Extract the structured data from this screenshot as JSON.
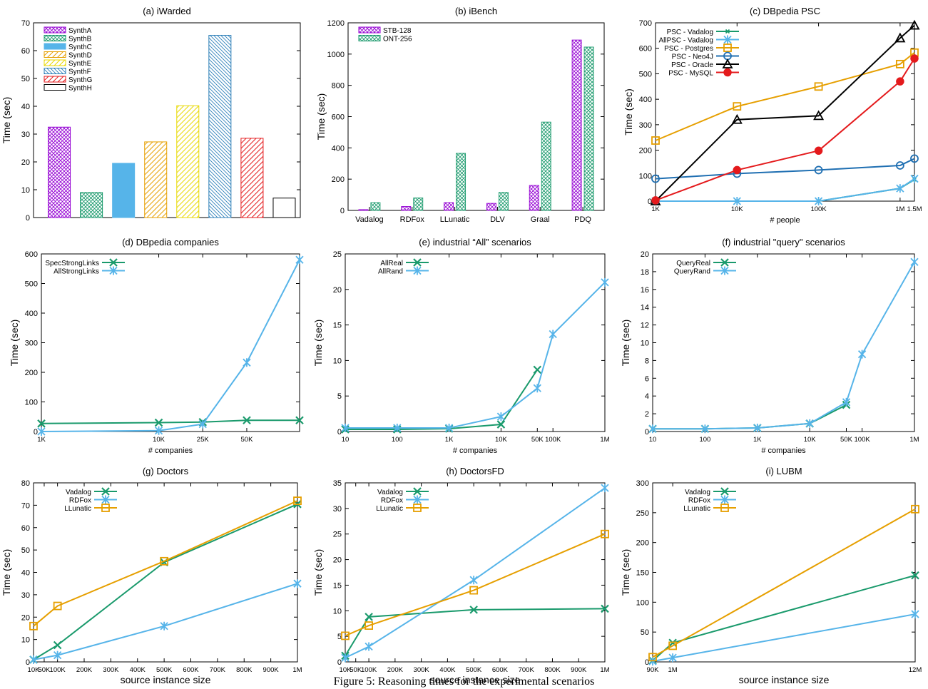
{
  "figure": {
    "caption": "Figure 5: Reasoning times for the experimental scenarios"
  },
  "colors": {
    "green": "#1a9a6c",
    "blue": "#56b4e9",
    "orange": "#e69f00",
    "black": "#000000",
    "red": "#e41a1c",
    "purple": "#9400d3",
    "teal": "#2f8f83",
    "yellow": "#e8d800",
    "synthH": "#000000"
  },
  "chart_data": [
    {
      "id": "a",
      "type": "bar",
      "title": "(a) iWarded",
      "xlabel": "",
      "ylabel": "Time (sec)",
      "ylim": [
        0,
        70
      ],
      "yticks": [
        0,
        10,
        20,
        30,
        40,
        50,
        60,
        70
      ],
      "legend_position": "top-left",
      "series": [
        {
          "name": "SynthA",
          "values": [
            32.5
          ],
          "color": "#9400d3",
          "pattern": "cross"
        },
        {
          "name": "SynthB",
          "values": [
            9
          ],
          "color": "#1a9a6c",
          "pattern": "cross"
        },
        {
          "name": "SynthC",
          "values": [
            19.5
          ],
          "color": "#56b4e9",
          "pattern": "solid"
        },
        {
          "name": "SynthD",
          "values": [
            27.2
          ],
          "color": "#e69f00",
          "pattern": "diag"
        },
        {
          "name": "SynthE",
          "values": [
            40.2
          ],
          "color": "#e8d800",
          "pattern": "diag"
        },
        {
          "name": "SynthF",
          "values": [
            65.5
          ],
          "color": "#2c7fb8",
          "pattern": "anti"
        },
        {
          "name": "SynthG",
          "values": [
            28.5
          ],
          "color": "#e41a1c",
          "pattern": "diag"
        },
        {
          "name": "SynthH",
          "values": [
            7
          ],
          "color": "#000000",
          "pattern": "empty"
        }
      ]
    },
    {
      "id": "b",
      "type": "bar",
      "title": "(b) iBench",
      "xlabel": "",
      "ylabel": "Time (sec)",
      "ylim": [
        0,
        1200
      ],
      "yticks": [
        0,
        200,
        400,
        600,
        800,
        1000,
        1200
      ],
      "legend_position": "top-left",
      "categories": [
        "Vadalog",
        "RDFox",
        "LLunatic",
        "DLV",
        "Graal",
        "PDQ"
      ],
      "series": [
        {
          "name": "STB-128",
          "values": [
            5,
            25,
            50,
            45,
            160,
            1090
          ],
          "color": "#9400d3",
          "pattern": "cross"
        },
        {
          "name": "ONT-256",
          "values": [
            50,
            80,
            365,
            115,
            565,
            1045
          ],
          "color": "#1a9a6c",
          "pattern": "cross"
        }
      ]
    },
    {
      "id": "c",
      "type": "line",
      "title": "(c) DBpedia PSC",
      "xlabel": "# people",
      "ylabel": "Time (sec)",
      "xscale": "log",
      "xlim": [
        1000,
        1500000
      ],
      "xticks": [
        1000,
        10000,
        100000,
        1000000,
        1500000
      ],
      "xticklabels": [
        "1K",
        "10K",
        "100K",
        "1M",
        "1.5M"
      ],
      "ylim": [
        0,
        700
      ],
      "yticks": [
        0,
        100,
        200,
        300,
        400,
        500,
        600,
        700
      ],
      "legend_position": "top-left",
      "x": [
        1000,
        10000,
        100000,
        1000000,
        1500000
      ],
      "series": [
        {
          "name": "PSC - Vadalog",
          "values": [
            0,
            0,
            0,
            50,
            85
          ],
          "color": "#1a9a6c",
          "marker": "small"
        },
        {
          "name": "AllPSC - Vadalog",
          "values": [
            0,
            0,
            0,
            50,
            88
          ],
          "color": "#56b4e9",
          "marker": "asterisk"
        },
        {
          "name": "PSC - Postgres",
          "values": [
            238,
            372,
            450,
            538,
            583
          ],
          "color": "#e69f00",
          "marker": "square"
        },
        {
          "name": "PSC - Neo4J",
          "values": [
            88,
            108,
            122,
            140,
            167
          ],
          "color": "#1f6fb2",
          "marker": "circle"
        },
        {
          "name": "PSC - Oracle",
          "values": [
            0,
            320,
            335,
            640,
            690
          ],
          "color": "#000000",
          "marker": "triangle"
        },
        {
          "name": "PSC - MySQL",
          "values": [
            3,
            122,
            198,
            470,
            560
          ],
          "color": "#e41a1c",
          "marker": "dot"
        }
      ]
    },
    {
      "id": "d",
      "type": "line",
      "title": "(d) DBpedia companies",
      "xlabel": "# companies",
      "ylabel": "Time (sec)",
      "xscale": "categorical",
      "xlim": [
        0,
        4.4
      ],
      "xticks": [
        0,
        2,
        2.75,
        3.5
      ],
      "xticklabels": [
        "1K",
        "10K",
        "25K",
        "50K"
      ],
      "ylim": [
        0,
        600
      ],
      "yticks": [
        0,
        100,
        200,
        300,
        400,
        500,
        600
      ],
      "legend_position": "top-left",
      "x": [
        0,
        2,
        2.75,
        3.5,
        4.4
      ],
      "series": [
        {
          "name": "SpecStrongLinks",
          "values": [
            27,
            30,
            32,
            38,
            38
          ],
          "color": "#1a9a6c",
          "marker": "x"
        },
        {
          "name": "AllStrongLinks",
          "values": [
            0,
            3,
            25,
            233,
            580
          ],
          "color": "#56b4e9",
          "marker": "asterisk"
        }
      ]
    },
    {
      "id": "e",
      "type": "line",
      "title": "(e) industrial “All” scenarios",
      "xlabel": "# companies",
      "ylabel": "Time (sec)",
      "xscale": "log",
      "xlim": [
        10,
        1000000
      ],
      "xticks": [
        10,
        100,
        1000,
        10000,
        50000,
        100000,
        1000000
      ],
      "xticklabels": [
        "10",
        "100",
        "1K",
        "10K",
        "50K",
        "100K",
        "1M"
      ],
      "ylim": [
        0,
        25
      ],
      "yticks": [
        0,
        5,
        10,
        15,
        20,
        25
      ],
      "legend_position": "top-left",
      "series": [
        {
          "name": "AllReal",
          "x": [
            10,
            100,
            1000,
            10000,
            50000
          ],
          "values": [
            0.3,
            0.3,
            0.4,
            1.0,
            8.7
          ],
          "color": "#1a9a6c",
          "marker": "x"
        },
        {
          "name": "AllRand",
          "x": [
            10,
            100,
            1000,
            10000,
            50000,
            100000,
            1000000
          ],
          "values": [
            0.5,
            0.5,
            0.5,
            2.1,
            6.1,
            13.7,
            21.0
          ],
          "color": "#56b4e9",
          "marker": "asterisk"
        }
      ]
    },
    {
      "id": "f",
      "type": "line",
      "title": "(f) industrial \"query\" scenarios",
      "xlabel": "# companies",
      "ylabel": "Time (sec)",
      "xscale": "log",
      "xlim": [
        10,
        1000000
      ],
      "xticks": [
        10,
        100,
        1000,
        10000,
        50000,
        100000,
        1000000
      ],
      "xticklabels": [
        "10",
        "100",
        "1K",
        "10K",
        "50K",
        "100K",
        "1M"
      ],
      "ylim": [
        0,
        20
      ],
      "yticks": [
        0,
        2,
        4,
        6,
        8,
        10,
        12,
        14,
        16,
        18,
        20
      ],
      "legend_position": "top-left",
      "series": [
        {
          "name": "QueryReal",
          "x": [
            10,
            100,
            1000,
            10000,
            50000
          ],
          "values": [
            0.3,
            0.3,
            0.4,
            0.9,
            3.0
          ],
          "color": "#1a9a6c",
          "marker": "x"
        },
        {
          "name": "QueryRand",
          "x": [
            10,
            100,
            1000,
            10000,
            50000,
            100000,
            1000000
          ],
          "values": [
            0.3,
            0.3,
            0.4,
            0.9,
            3.3,
            8.7,
            19.1
          ],
          "color": "#56b4e9",
          "marker": "asterisk"
        }
      ]
    },
    {
      "id": "g",
      "type": "line",
      "title": "(g) Doctors",
      "xlabel": "source instance size",
      "ylabel": "Time (sec)",
      "xscale": "linear",
      "xlim": [
        10000,
        1000000
      ],
      "xticks": [
        10000,
        50000,
        100000,
        200000,
        300000,
        400000,
        500000,
        600000,
        700000,
        800000,
        900000,
        1000000
      ],
      "xticklabels": [
        "10K",
        "50K",
        "100K",
        "200K",
        "300K",
        "400K",
        "500K",
        "600K",
        "700K",
        "800K",
        "900K",
        "1M"
      ],
      "ylim": [
        0,
        80
      ],
      "yticks": [
        0,
        10,
        20,
        30,
        40,
        50,
        60,
        70,
        80
      ],
      "legend_position": "top-left",
      "x": [
        10000,
        100000,
        500000,
        1000000
      ],
      "series": [
        {
          "name": "Vadalog",
          "values": [
            1,
            7.5,
            44.5,
            70.5
          ],
          "color": "#1a9a6c",
          "marker": "x"
        },
        {
          "name": "RDFox",
          "values": [
            1,
            3,
            16,
            35
          ],
          "color": "#56b4e9",
          "marker": "asterisk"
        },
        {
          "name": "LLunatic",
          "values": [
            16,
            25,
            45,
            72
          ],
          "color": "#e69f00",
          "marker": "square"
        }
      ]
    },
    {
      "id": "h",
      "type": "line",
      "title": "(h) DoctorsFD",
      "xlabel": "source instance size",
      "ylabel": "Time (sec)",
      "xscale": "linear",
      "xlim": [
        10000,
        1000000
      ],
      "xticks": [
        10000,
        50000,
        100000,
        200000,
        300000,
        400000,
        500000,
        600000,
        700000,
        800000,
        900000,
        1000000
      ],
      "xticklabels": [
        "10K",
        "50K",
        "100K",
        "200K",
        "300K",
        "400K",
        "500K",
        "600K",
        "700K",
        "800K",
        "900K",
        "1M"
      ],
      "ylim": [
        0,
        35
      ],
      "yticks": [
        0,
        5,
        10,
        15,
        20,
        25,
        30,
        35
      ],
      "legend_position": "top-left",
      "x": [
        10000,
        100000,
        500000,
        1000000
      ],
      "series": [
        {
          "name": "Vadalog",
          "values": [
            1.2,
            8.8,
            10.2,
            10.4
          ],
          "color": "#1a9a6c",
          "marker": "x"
        },
        {
          "name": "RDFox",
          "values": [
            0.8,
            3,
            16,
            34
          ],
          "color": "#56b4e9",
          "marker": "asterisk"
        },
        {
          "name": "LLunatic",
          "values": [
            5.1,
            7.1,
            14,
            25
          ],
          "color": "#e69f00",
          "marker": "square"
        }
      ]
    },
    {
      "id": "i",
      "type": "line",
      "title": "(i) LUBM",
      "xlabel": "source instance size",
      "ylabel": "Time (sec)",
      "xscale": "linear",
      "xlim": [
        90000,
        12000000
      ],
      "xticks": [
        90000,
        1000000,
        12000000
      ],
      "xticklabels": [
        "90K",
        "1M",
        "12M"
      ],
      "ylim": [
        0,
        300
      ],
      "yticks": [
        0,
        50,
        100,
        150,
        200,
        250,
        300
      ],
      "legend_position": "top-left",
      "x": [
        90000,
        1000000,
        12000000
      ],
      "series": [
        {
          "name": "Vadalog",
          "values": [
            2,
            32,
            145
          ],
          "color": "#1a9a6c",
          "marker": "x"
        },
        {
          "name": "RDFox",
          "values": [
            1,
            7,
            80
          ],
          "color": "#56b4e9",
          "marker": "asterisk"
        },
        {
          "name": "LLunatic",
          "values": [
            8,
            27,
            256
          ],
          "color": "#e69f00",
          "marker": "square"
        }
      ]
    }
  ]
}
